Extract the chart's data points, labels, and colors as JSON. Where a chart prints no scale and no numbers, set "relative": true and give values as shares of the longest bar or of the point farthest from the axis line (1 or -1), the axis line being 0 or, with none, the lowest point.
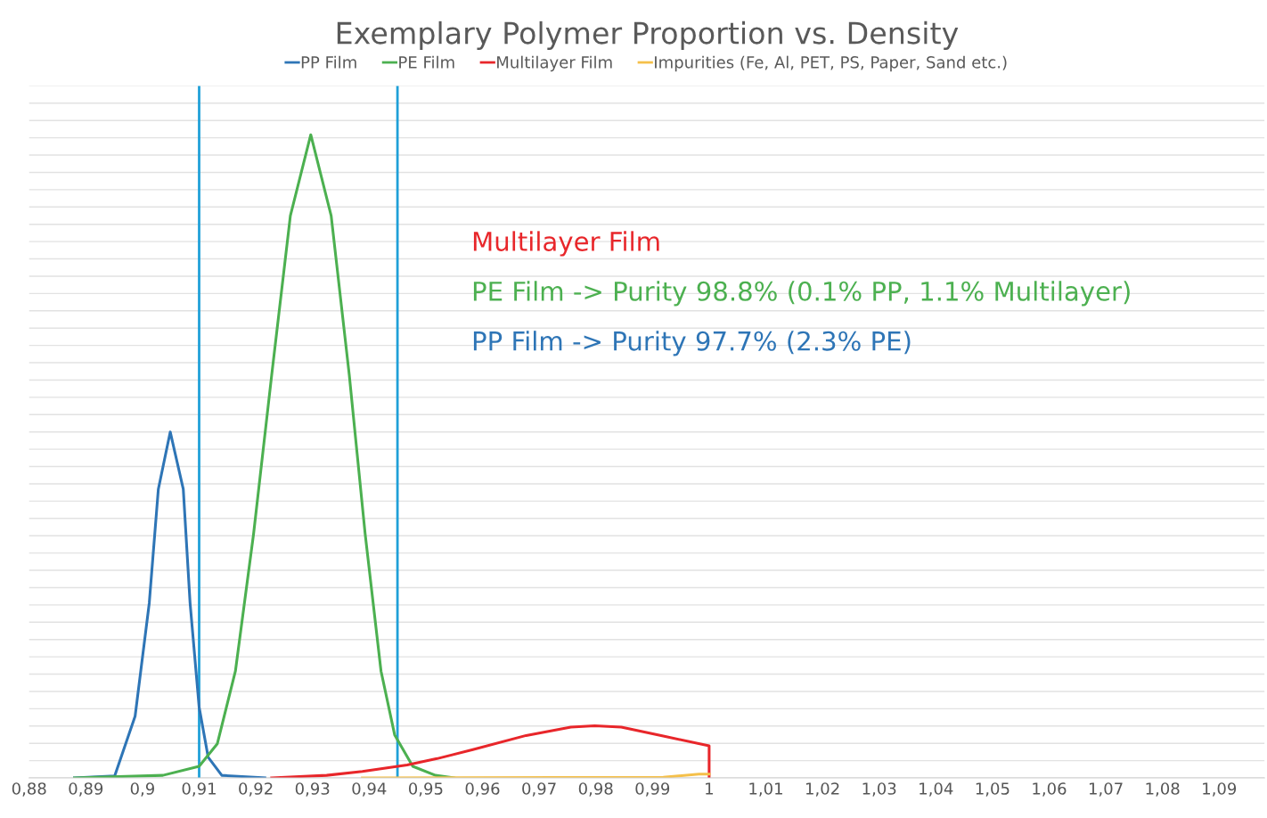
{
  "chart_data": {
    "type": "line",
    "title": "Exemplary Polymer Proportion vs. Density",
    "relative": true,
    "grid": "y",
    "legend": "top",
    "marker": "none",
    "xlim": [
      0.88,
      1.098
    ],
    "xticks": [
      {
        "value": 0.88,
        "label": "0,88"
      },
      {
        "value": 0.89,
        "label": "0,89"
      },
      {
        "value": 0.9,
        "label": "0,9"
      },
      {
        "value": 0.91,
        "label": "0,91"
      },
      {
        "value": 0.92,
        "label": "0,92"
      },
      {
        "value": 0.93,
        "label": "0,93"
      },
      {
        "value": 0.94,
        "label": "0,94"
      },
      {
        "value": 0.95,
        "label": "0,95"
      },
      {
        "value": 0.96,
        "label": "0,96"
      },
      {
        "value": 0.97,
        "label": "0,97"
      },
      {
        "value": 0.98,
        "label": "0,98"
      },
      {
        "value": 0.99,
        "label": "0,99"
      },
      {
        "value": 1,
        "label": "1"
      },
      {
        "value": 1.01,
        "label": "1,01"
      },
      {
        "value": 1.02,
        "label": "1,02"
      },
      {
        "value": 1.03,
        "label": "1,03"
      },
      {
        "value": 1.04,
        "label": "1,04"
      },
      {
        "value": 1.05,
        "label": "1,05"
      },
      {
        "value": 1.06,
        "label": "1,06"
      },
      {
        "value": 1.07,
        "label": "1,07"
      },
      {
        "value": 1.08,
        "label": "1,08"
      },
      {
        "value": 1.09,
        "label": "1,09"
      }
    ],
    "series": [
      {
        "name": "PP Film",
        "color": "#2e75b6",
        "x": [
          0.888,
          0.8951,
          0.8987,
          0.9012,
          0.9028,
          0.9049,
          0.9072,
          0.9084,
          0.91,
          0.9116,
          0.914,
          0.9216
        ],
        "values": [
          0,
          0.003,
          0.096,
          0.272,
          0.449,
          0.538,
          0.449,
          0.272,
          0.11,
          0.032,
          0.004,
          0
        ]
      },
      {
        "name": "PE Film",
        "color": "#4cb050",
        "x": [
          0.888,
          0.9036,
          0.91,
          0.9132,
          0.9164,
          0.9196,
          0.9228,
          0.9261,
          0.9297,
          0.9333,
          0.9365,
          0.9393,
          0.9421,
          0.9445,
          0.9477,
          0.9517,
          0.955
        ],
        "values": [
          0,
          0.004,
          0.018,
          0.053,
          0.166,
          0.379,
          0.626,
          0.874,
          1.0,
          0.874,
          0.626,
          0.379,
          0.166,
          0.067,
          0.018,
          0.004,
          0
        ]
      },
      {
        "name": "Multilayer Film",
        "color": "#e8262a",
        "x": [
          0.9228,
          0.9325,
          0.9388,
          0.9467,
          0.952,
          0.9583,
          0.9677,
          0.9756,
          0.9798,
          0.9845,
          0.9919,
          1.0,
          1.0
        ],
        "values": [
          0,
          0.004,
          0.01,
          0.02,
          0.03,
          0.044,
          0.066,
          0.079,
          0.081,
          0.079,
          0.065,
          0.05,
          0
        ]
      },
      {
        "name": "Impurities (Fe, Al, PET, PS, Paper, Sand etc.)",
        "color": "#f5c04a",
        "x": [
          0.9388,
          0.9919,
          0.9982,
          1.0
        ],
        "values": [
          0,
          0.001,
          0.006,
          0.006
        ]
      }
    ],
    "ref_lines": [
      {
        "axis": "x",
        "value": 0.91,
        "color": "#1fa0d8"
      },
      {
        "axis": "x",
        "value": 0.945,
        "color": "#1fa0d8"
      }
    ],
    "annotations": [
      "Multilayer Film",
      "PE Film -> Purity 98.8% (0.1% PP, 1.1% Multilayer)",
      "PP Film -> Purity 97.7% (2.3% PE)"
    ]
  }
}
